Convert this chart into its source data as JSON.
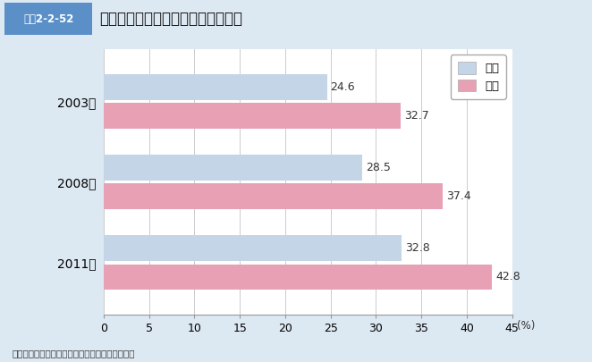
{
  "title": "禁煙意向のある喫煙者の割合の推移",
  "header_label": "図表2-2-52",
  "years": [
    "2003年",
    "2008年",
    "2011年"
  ],
  "male_values": [
    24.6,
    28.5,
    32.8
  ],
  "female_values": [
    32.7,
    37.4,
    42.8
  ],
  "male_color": "#c5d5e8",
  "female_color": "#e8a0b4",
  "xlim": [
    0,
    45
  ],
  "xticks": [
    0,
    5,
    10,
    15,
    20,
    25,
    30,
    35,
    40,
    45
  ],
  "xlabel": "(%)",
  "legend_male": "男性",
  "legend_female": "女性",
  "source": "資料：厚生労働省健康局「国民健康・栄養調査」",
  "bg_color": "#dce8f2",
  "plot_bg_color": "#ffffff",
  "header_bg_color": "#5b8fc8",
  "bar_height": 0.32,
  "label_fontsize": 9,
  "tick_fontsize": 9,
  "title_fontsize": 12
}
